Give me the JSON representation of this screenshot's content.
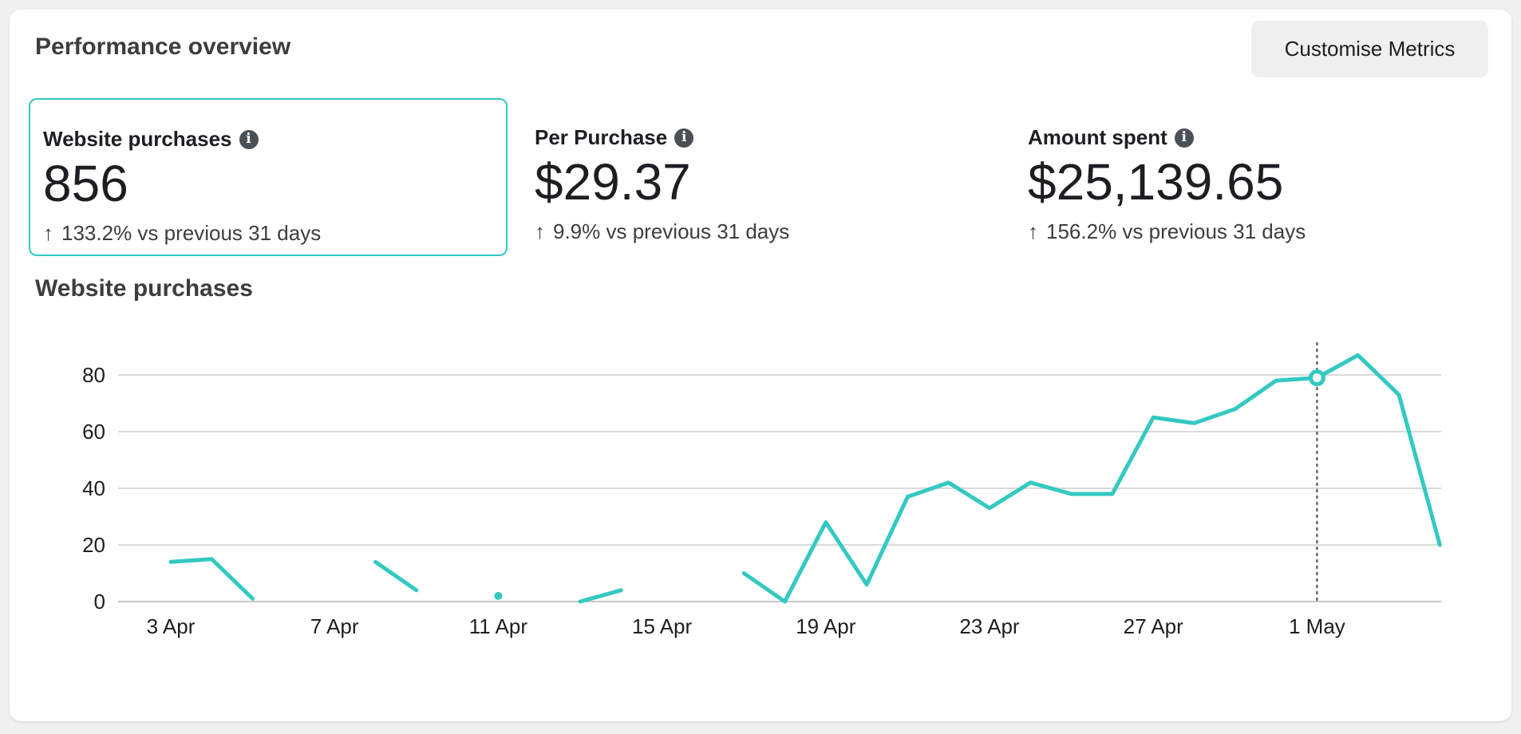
{
  "header": {
    "title": "Performance overview",
    "customise_label": "Customise Metrics"
  },
  "metrics": [
    {
      "label": "Website purchases",
      "value": "856",
      "change": "133.2% vs previous 31 days",
      "selected": true
    },
    {
      "label": "Per Purchase",
      "value": "$29.37",
      "change": "9.9% vs previous 31 days",
      "selected": false
    },
    {
      "label": "Amount spent",
      "value": "$25,139.65",
      "change": "156.2% vs previous 31 days",
      "selected": false
    }
  ],
  "icons": {
    "info": "info-icon",
    "trend": "arrow-up-icon"
  },
  "colors": {
    "accent": "#33c9c2",
    "grid": "#d9d9d9",
    "hover_line": "#666666"
  },
  "chart_data": {
    "type": "line",
    "title": "Website purchases",
    "ylim": [
      0,
      90
    ],
    "yticks": [
      0,
      20,
      40,
      60,
      80
    ],
    "x": [
      "3 Apr",
      "4 Apr",
      "5 Apr",
      "6 Apr",
      "7 Apr",
      "8 Apr",
      "9 Apr",
      "10 Apr",
      "11 Apr",
      "12 Apr",
      "13 Apr",
      "14 Apr",
      "15 Apr",
      "16 Apr",
      "17 Apr",
      "18 Apr",
      "19 Apr",
      "20 Apr",
      "21 Apr",
      "22 Apr",
      "23 Apr",
      "24 Apr",
      "25 Apr",
      "26 Apr",
      "27 Apr",
      "28 Apr",
      "29 Apr",
      "30 Apr",
      "1 May",
      "2 May",
      "3 May",
      "4 May"
    ],
    "xtick_labels": [
      "3 Apr",
      "7 Apr",
      "11 Apr",
      "15 Apr",
      "19 Apr",
      "23 Apr",
      "27 Apr",
      "1 May"
    ],
    "series": [
      {
        "values": [
          14,
          15,
          1,
          null,
          null,
          14,
          4,
          null,
          2,
          null,
          0,
          4,
          null,
          null,
          10,
          0,
          28,
          6,
          37,
          42,
          33,
          42,
          38,
          38,
          65,
          63,
          68,
          78,
          79,
          87,
          73,
          20
        ]
      }
    ],
    "highlight_x": "1 May",
    "grid": true,
    "legend": "none"
  }
}
